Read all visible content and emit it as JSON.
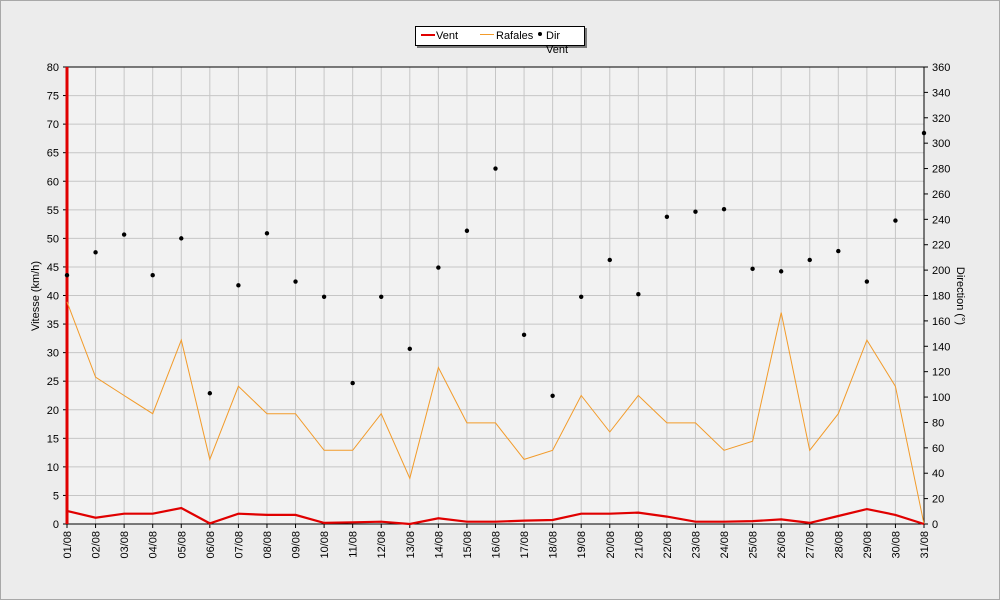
{
  "chart_data": {
    "type": "line",
    "x": [
      "01/08",
      "02/08",
      "03/08",
      "04/08",
      "05/08",
      "06/08",
      "07/08",
      "08/08",
      "09/08",
      "10/08",
      "11/08",
      "12/08",
      "13/08",
      "14/08",
      "15/08",
      "16/08",
      "17/08",
      "18/08",
      "19/08",
      "20/08",
      "21/08",
      "22/08",
      "23/08",
      "24/08",
      "25/08",
      "26/08",
      "27/08",
      "28/08",
      "29/08",
      "30/08",
      "31/08"
    ],
    "ylabel": "Vitesse (km/h)",
    "y2label": "Direction (°)",
    "ylim": [
      0,
      80
    ],
    "y2lim": [
      0,
      360
    ],
    "yticks": [
      0,
      5,
      10,
      15,
      20,
      25,
      30,
      35,
      40,
      45,
      50,
      55,
      60,
      65,
      70,
      75,
      80
    ],
    "y2ticks": [
      0,
      20,
      40,
      60,
      80,
      100,
      120,
      140,
      160,
      180,
      200,
      220,
      240,
      260,
      280,
      300,
      320,
      340,
      360
    ],
    "grid": true,
    "legend_position": "top-center",
    "series": [
      {
        "name": "Vent",
        "axis": "left",
        "color": "#e00000",
        "values": [
          2.3,
          1.1,
          1.8,
          1.8,
          2.8,
          0.1,
          1.8,
          1.6,
          1.6,
          0.2,
          0.3,
          0.4,
          0.0,
          1.0,
          0.4,
          0.4,
          0.6,
          0.7,
          1.8,
          1.8,
          2.0,
          1.3,
          0.4,
          0.4,
          0.5,
          0.8,
          0.2,
          1.4,
          2.6,
          1.6,
          0.0
        ]
      },
      {
        "name": "Rafales",
        "axis": "left",
        "color": "#f29b2a",
        "values": [
          38.9,
          25.7,
          22.5,
          19.3,
          32.2,
          11.3,
          24.1,
          19.3,
          19.3,
          12.9,
          12.9,
          19.3,
          8.0,
          27.4,
          17.7,
          17.7,
          11.3,
          12.9,
          22.5,
          16.1,
          22.5,
          17.7,
          17.7,
          12.9,
          14.5,
          37.0,
          12.9,
          19.3,
          32.2,
          24.1,
          0.0
        ]
      },
      {
        "name": "Dir Vent",
        "axis": "right",
        "color": "#000000",
        "values": [
          196,
          214,
          228,
          196,
          225,
          103,
          188,
          229,
          191,
          179,
          111,
          179,
          138,
          202,
          231,
          280,
          149,
          101,
          179,
          208,
          181,
          242,
          246,
          248,
          201,
          199,
          208,
          215,
          191,
          239,
          308
        ]
      }
    ]
  }
}
